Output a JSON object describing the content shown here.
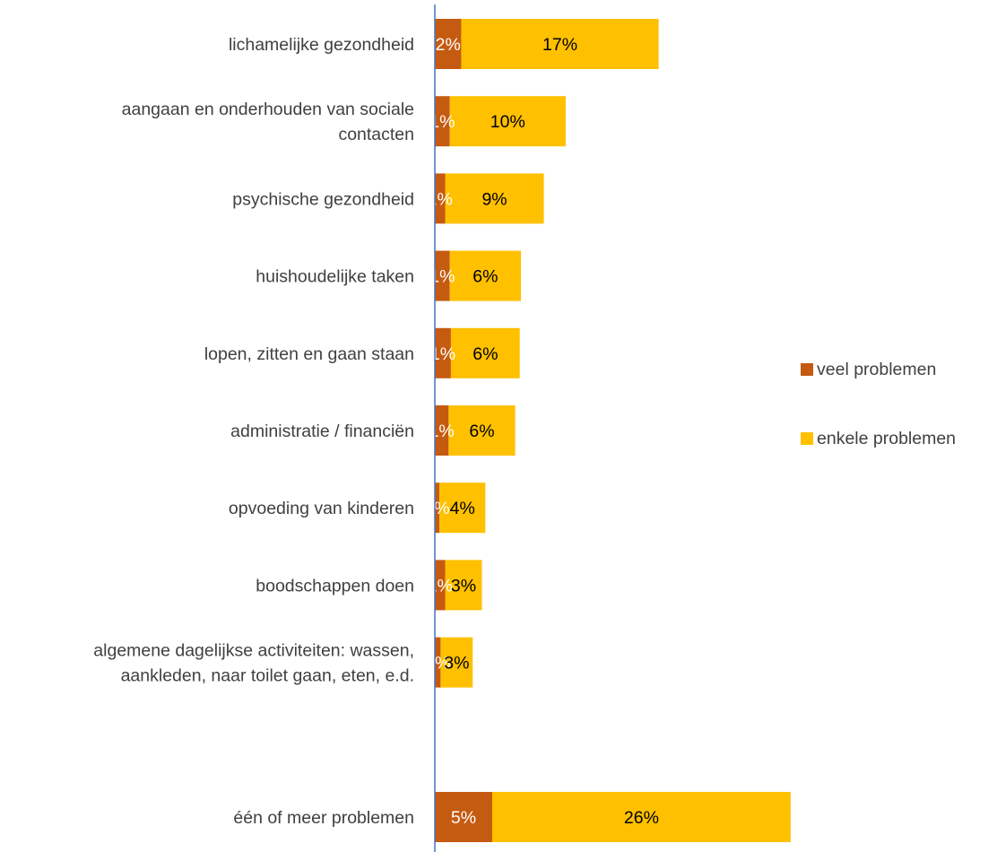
{
  "chart_data": {
    "type": "bar",
    "orientation": "horizontal",
    "stacked": true,
    "categories": [
      [
        "lichamelijke gezondheid"
      ],
      [
        "aangaan en onderhouden van sociale",
        "contacten"
      ],
      [
        "psychische gezondheid"
      ],
      [
        "huishoudelijke taken"
      ],
      [
        "lopen, zitten en gaan staan"
      ],
      [
        "administratie / financiën"
      ],
      [
        "opvoeding van kinderen"
      ],
      [
        "boodschappen doen"
      ],
      [
        "algemene dagelijkse activiteiten: wassen,",
        "aankleden, naar toilet gaan, eten, e.d."
      ],
      [
        ""
      ],
      [
        "één of meer problemen"
      ]
    ],
    "series": [
      {
        "name": "veel problemen",
        "color": "#C55A11",
        "values": [
          2.3,
          1.3,
          0.9,
          1.3,
          1.4,
          1.2,
          0.4,
          0.9,
          0.5,
          null,
          5.0
        ],
        "labels": [
          "2%",
          "1%",
          "1%",
          "1%",
          "1%",
          "1%",
          "0%",
          "1%",
          "0%",
          "",
          "5%"
        ]
      },
      {
        "name": "enkele problemen",
        "color": "#FFC000",
        "values": [
          17.2,
          10.1,
          8.6,
          6.2,
          6.0,
          5.8,
          4.0,
          3.2,
          2.8,
          null,
          26.0
        ],
        "labels": [
          "17%",
          "10%",
          "9%",
          "6%",
          "6%",
          "6%",
          "4%",
          "3%",
          "3%",
          "",
          "26%"
        ]
      }
    ],
    "xlim": [
      0,
      40
    ],
    "axis_color": "#4472C4",
    "grid": false,
    "legend_position": "right"
  }
}
